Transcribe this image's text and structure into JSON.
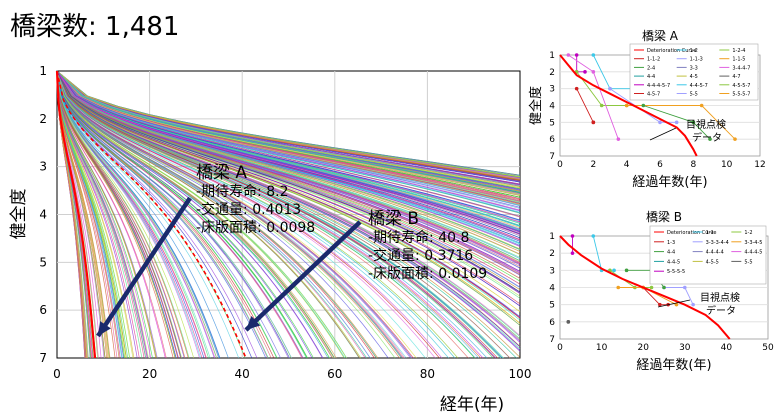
{
  "header": {
    "title": "橋梁数: 1,481"
  },
  "main_chart": {
    "xlabel": "経年(年)",
    "ylabel": "健全度",
    "x_ticks": [
      "0",
      "20",
      "40",
      "60",
      "80",
      "100"
    ],
    "y_ticks": [
      "1",
      "2",
      "3",
      "4",
      "5",
      "6",
      "7"
    ],
    "annotation_a": {
      "title": "橋梁 A",
      "lines": [
        "-期待寿命:  8.2",
        "-交通量: 0.4013",
        "-床版面積: 0.0098"
      ]
    },
    "annotation_b": {
      "title": "橋梁 B",
      "lines": [
        "-期待寿命:  40.8",
        "-交通量: 0.3716",
        "-床版面積: 0.0109"
      ]
    }
  },
  "inset_a": {
    "title": "橋梁 A",
    "xlabel": "経過年数(年)",
    "ylabel": "健全度",
    "x_ticks": [
      "0",
      "2",
      "4",
      "6",
      "8",
      "10",
      "12"
    ],
    "y_ticks": [
      "1",
      "2",
      "3",
      "4",
      "5",
      "6",
      "7"
    ],
    "legend": [
      "Deterioration Curve",
      "1-2",
      "1-2-4",
      "1-1-2",
      "1-1-3",
      "1-1-5",
      "2-4",
      "3-3",
      "3-4-4-7",
      "4-4",
      "4-5",
      "4-7",
      "4-4-4-5-7",
      "4-4-5-7",
      "4-5-5-7",
      "4-5-7",
      "5-5",
      "5-5-5-7"
    ],
    "callout": [
      "目視点検",
      "データ"
    ]
  },
  "inset_b": {
    "title": "橋梁 B",
    "xlabel": "経過年数(年)",
    "x_ticks": [
      "0",
      "10",
      "20",
      "30",
      "40",
      "50"
    ],
    "y_ticks": [
      "1",
      "2",
      "3",
      "4",
      "5",
      "6",
      "7"
    ],
    "legend": [
      "Deterioration Curve",
      "1-1",
      "1-2",
      "1-3",
      "3-3-3-4-4",
      "3-3-4-5",
      "4-4",
      "4-4-4-4",
      "4-4-4-5",
      "4-4-5",
      "4-5-5",
      "5-5",
      "5-5-5-5"
    ],
    "callout": [
      "目視点検",
      "データ"
    ]
  },
  "chart_data": [
    {
      "type": "line",
      "title": "橋梁数: 1,481",
      "xlabel": "経年(年)",
      "ylabel": "健全度",
      "xlim": [
        0,
        100
      ],
      "ylim": [
        7,
        1
      ],
      "series_count": 1481,
      "highlight": [
        {
          "name": "橋梁 A",
          "expected_life": 8.2,
          "traffic": 0.4013,
          "deck_area": 0.0098
        },
        {
          "name": "橋梁 B",
          "expected_life": 40.8,
          "traffic": 0.3716,
          "deck_area": 0.0109
        }
      ],
      "colors": {
        "highlight_curve": "#ff0000",
        "arrow": "#1a2a6c"
      }
    },
    {
      "type": "line",
      "title": "橋梁 A",
      "xlabel": "経過年数(年)",
      "ylabel": "健全度",
      "xlim": [
        0,
        12
      ],
      "ylim": [
        7,
        1
      ],
      "series": [
        {
          "name": "Deterioration Curve",
          "x": [
            0,
            0.5,
            1,
            2,
            3,
            4,
            5,
            6,
            7,
            7.5,
            8,
            8.2
          ],
          "y": [
            1,
            1.6,
            2.2,
            2.8,
            3.3,
            3.8,
            4.3,
            4.8,
            5.3,
            5.8,
            6.6,
            7
          ]
        }
      ]
    },
    {
      "type": "line",
      "title": "橋梁 B",
      "xlabel": "経過年数(年)",
      "xlim": [
        0,
        50
      ],
      "ylim": [
        7,
        1
      ],
      "series": [
        {
          "name": "Deterioration Curve",
          "x": [
            0,
            2,
            5,
            10,
            15,
            20,
            25,
            30,
            35,
            38,
            40.8
          ],
          "y": [
            1,
            1.5,
            2.1,
            2.9,
            3.5,
            4.0,
            4.5,
            5.0,
            5.6,
            6.2,
            7
          ]
        }
      ]
    }
  ]
}
